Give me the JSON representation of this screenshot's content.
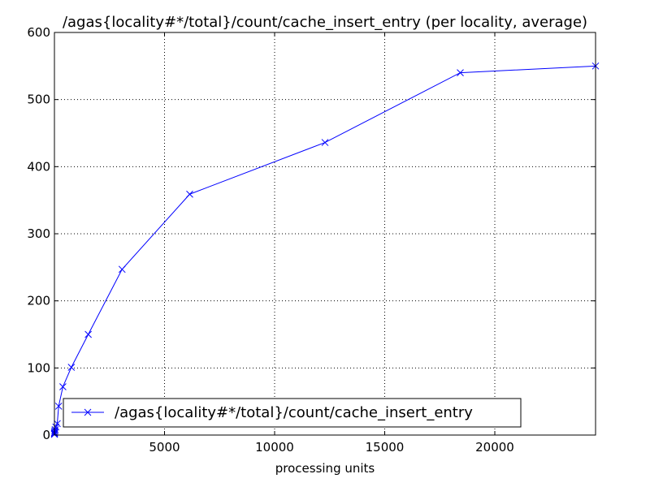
{
  "chart_data": {
    "type": "line",
    "title": "/agas{locality#*/total}/count/cache_insert_entry (per locality, average)",
    "xlabel": "processing units",
    "ylabel": "",
    "xlim": [
      0,
      24576
    ],
    "ylim": [
      0,
      600
    ],
    "x_ticks": [
      5000,
      10000,
      15000,
      20000
    ],
    "y_ticks": [
      0,
      100,
      200,
      300,
      400,
      500,
      600
    ],
    "grid": true,
    "legend": "lower-left",
    "series": [
      {
        "name": "/agas{locality#*/total}/count/cache_insert_entry",
        "color": "#0000ff",
        "marker": "x",
        "x": [
          1,
          2,
          4,
          8,
          16,
          32,
          64,
          128,
          192,
          384,
          768,
          1536,
          3072,
          6144,
          12288,
          18432,
          24576
        ],
        "y": [
          1,
          2,
          3,
          4,
          6,
          8,
          12,
          17,
          43,
          72,
          101,
          150,
          247,
          359,
          436,
          540,
          550
        ]
      }
    ]
  }
}
